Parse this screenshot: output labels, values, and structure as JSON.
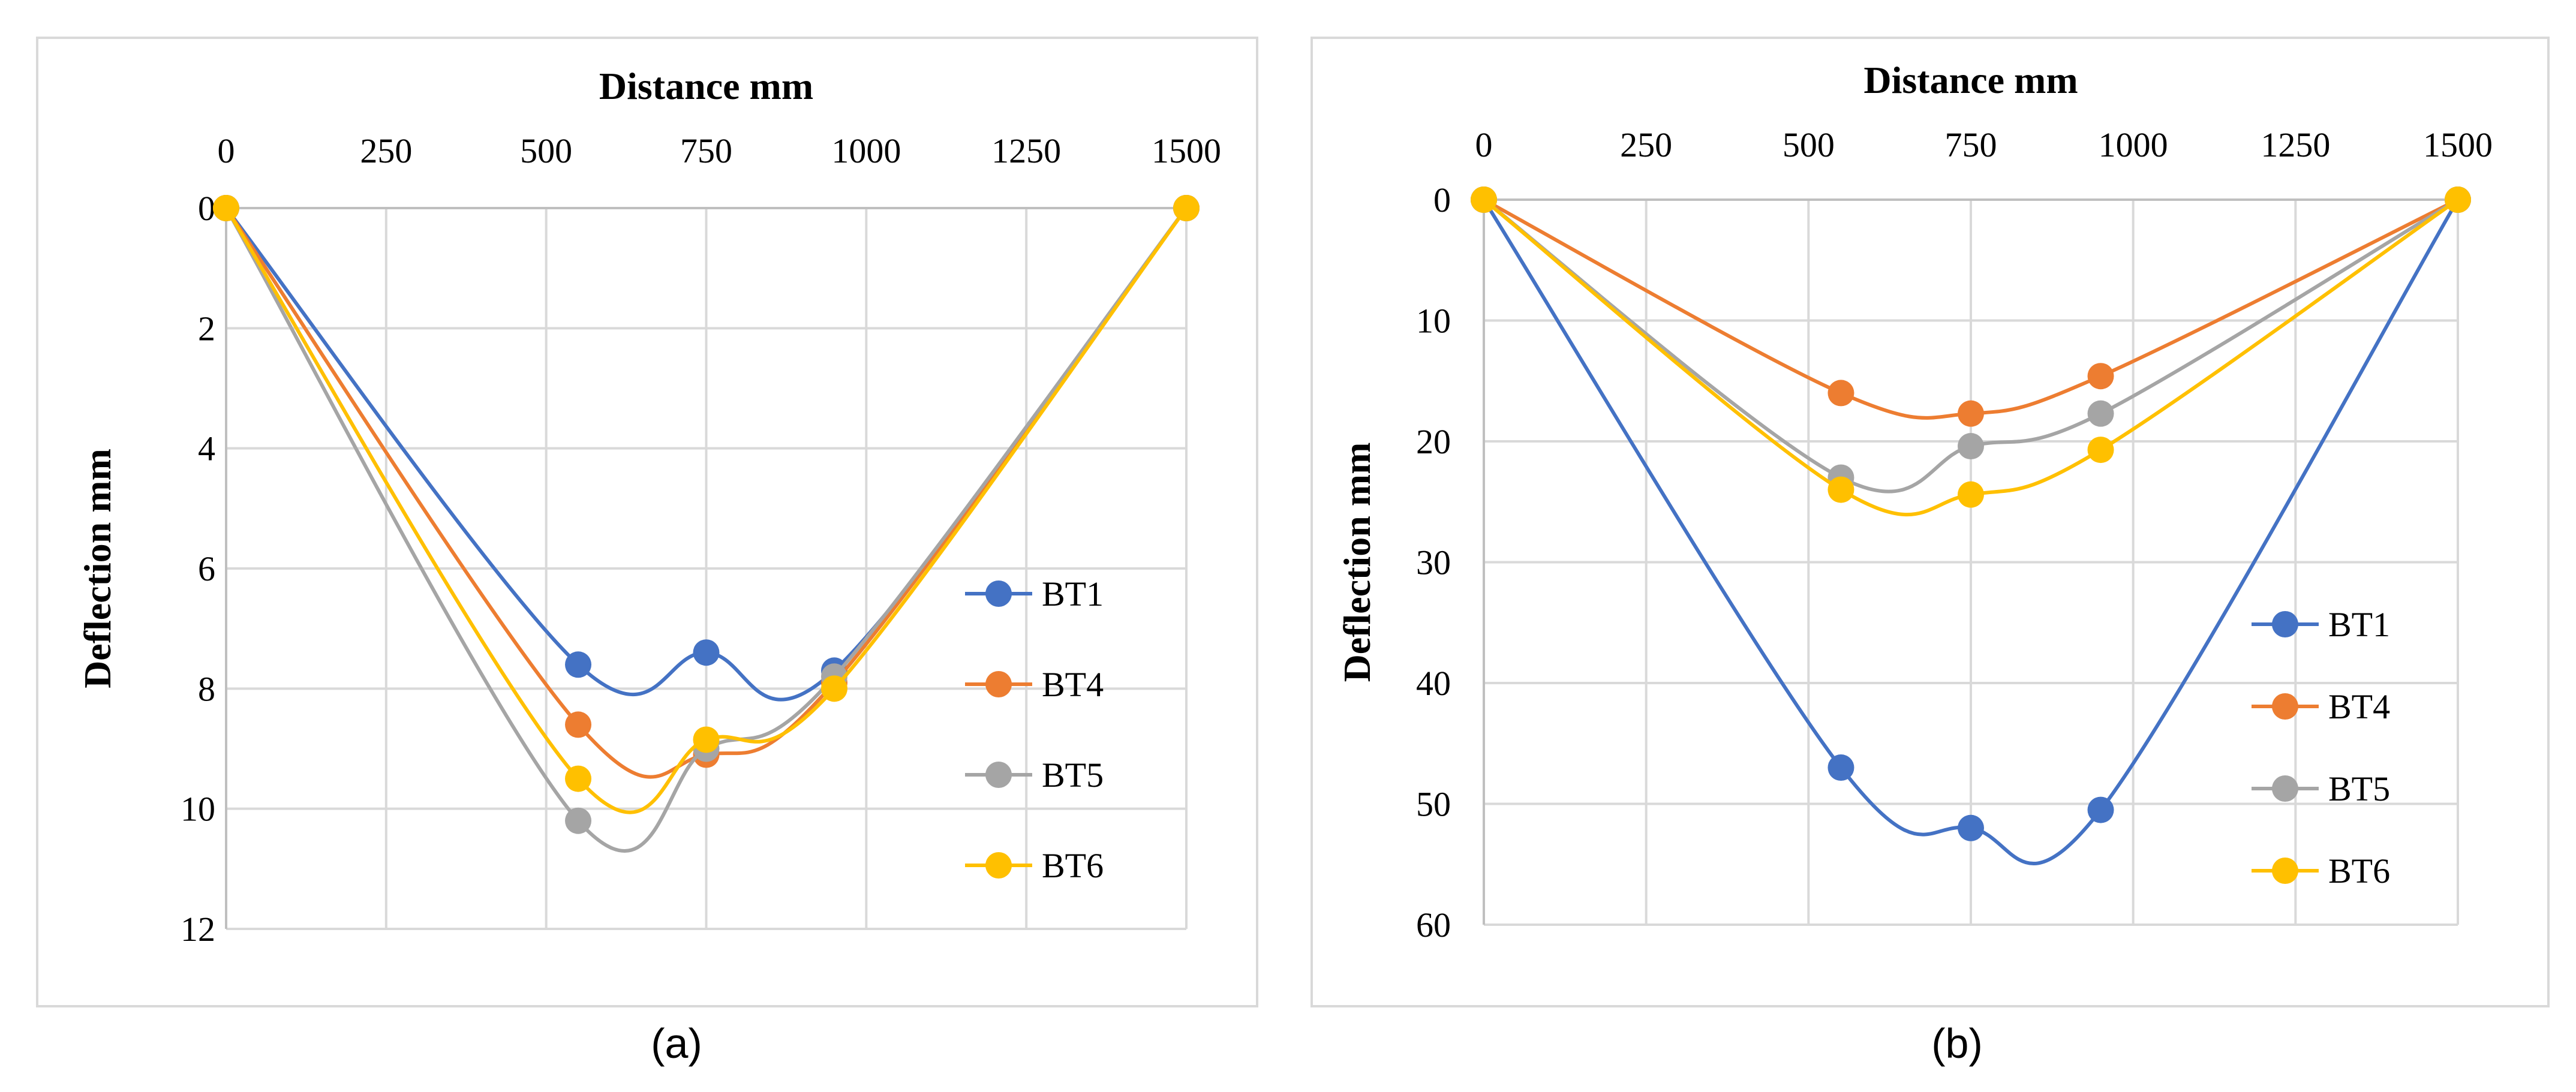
{
  "chart_data": [
    {
      "type": "line",
      "panel_label": "(a)",
      "title": "",
      "xlabel": "Distance mm",
      "ylabel": "Deflection mm",
      "x": [
        0,
        550,
        750,
        950,
        1500
      ],
      "xlim": [
        0,
        1500
      ],
      "ylim": [
        0,
        12
      ],
      "x_ticks": [
        "0",
        "250",
        "500",
        "750",
        "1000",
        "1250",
        "1500"
      ],
      "y_ticks": [
        "0",
        "2",
        "4",
        "6",
        "8",
        "10",
        "12"
      ],
      "y_inverted": true,
      "x_axis_position": "top",
      "legend_position": "right",
      "grid": true,
      "smooth": true,
      "series": [
        {
          "name": "BT1",
          "color": "#4472C4",
          "values": [
            0,
            7.6,
            7.4,
            7.7,
            0
          ]
        },
        {
          "name": "BT4",
          "color": "#ED7D31",
          "values": [
            0,
            8.6,
            9.1,
            7.9,
            0
          ]
        },
        {
          "name": "BT5",
          "color": "#A5A5A5",
          "values": [
            0,
            10.2,
            9.0,
            7.8,
            0
          ]
        },
        {
          "name": "BT6",
          "color": "#FFC000",
          "values": [
            0,
            9.5,
            8.85,
            8.0,
            0
          ]
        }
      ]
    },
    {
      "type": "line",
      "panel_label": "(b)",
      "title": "",
      "xlabel": "Distance mm",
      "ylabel": "Deflection mm",
      "x": [
        0,
        550,
        750,
        950,
        1500
      ],
      "xlim": [
        0,
        1500
      ],
      "ylim": [
        0,
        60
      ],
      "x_ticks": [
        "0",
        "250",
        "500",
        "750",
        "1000",
        "1250",
        "1500"
      ],
      "y_ticks": [
        "0",
        "10",
        "20",
        "30",
        "40",
        "50",
        "60"
      ],
      "y_inverted": true,
      "x_axis_position": "top",
      "legend_position": "right",
      "grid": true,
      "smooth": true,
      "series": [
        {
          "name": "BT1",
          "color": "#4472C4",
          "values": [
            0,
            47,
            52,
            50.5,
            0
          ]
        },
        {
          "name": "BT4",
          "color": "#ED7D31",
          "values": [
            0,
            16,
            17.7,
            14.6,
            0
          ]
        },
        {
          "name": "BT5",
          "color": "#A5A5A5",
          "values": [
            0,
            23,
            20.4,
            17.7,
            0
          ]
        },
        {
          "name": "BT6",
          "color": "#FFC000",
          "values": [
            0,
            24,
            24.4,
            20.7,
            0
          ]
        }
      ]
    }
  ]
}
